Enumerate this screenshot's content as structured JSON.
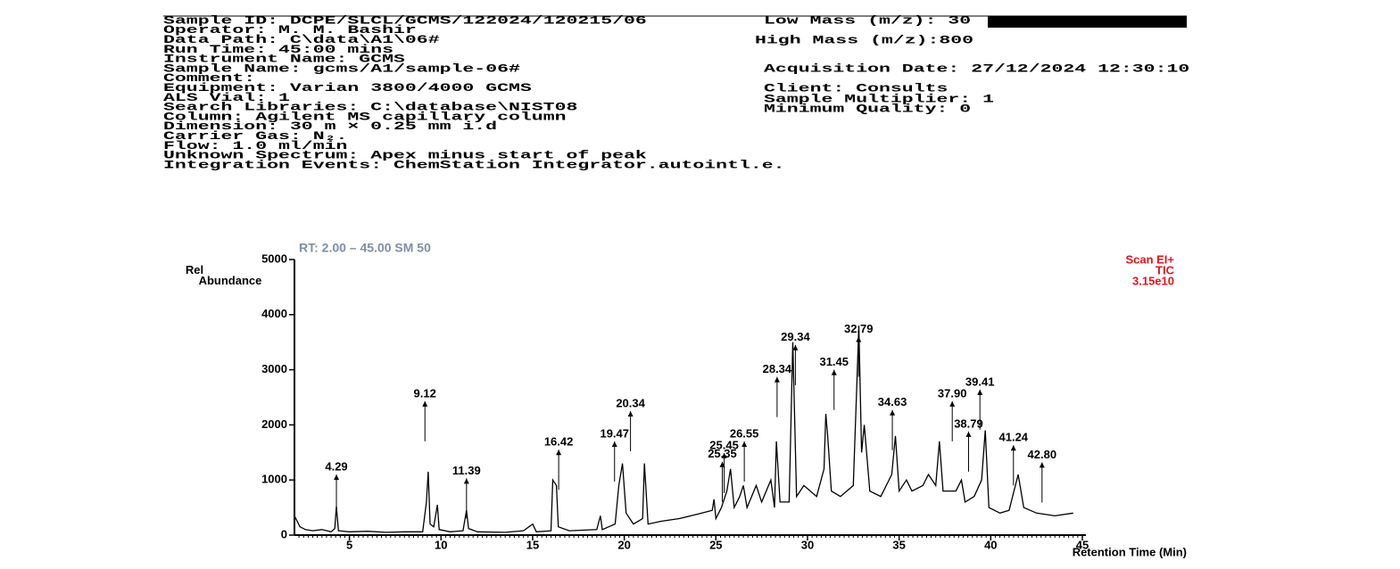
{
  "header": {
    "left": [
      "Sample ID: DCPE/SLCL/GCMS/122024/120215/06",
      "Operator: M. M. Bashir",
      "Data Path: C\\data\\A1\\06#",
      "Run Time: 45:00 mins",
      "Instrument Name: GCMS",
      "Sample Name: gcms/A1/sample-06#",
      "Comment:",
      "Equipment: Varian 3800/4000 GCMS",
      "ALS Vial: 1",
      "Search Libraries: C:\\database\\NIST08",
      "Column: Agilent MS capillary column",
      "Dimension: 30 m × 0.25 mm i.d",
      "Carrier Gas: N₂.",
      "Flow: 1.0 ml/min",
      "Unknown Spectrum: Apex minus start of peak",
      "Integration Events: ChemStation Integrator.autointl.e."
    ],
    "right": [
      "Low Mass (m/z): 30",
      "High Mass (m/z):800",
      "Acquisition Date: 27/12/2024 12:30:10",
      "Client: Consults",
      "Sample Multiplier: 1",
      "Minimum Quality: 0"
    ]
  },
  "chart_data": {
    "type": "line",
    "title": "RT: 2.00 – 45.00 SM 50",
    "y_label": "Rel Abundance",
    "x_label": "Retention Time (Min)",
    "annotation": [
      "Scan EI+",
      "TIC",
      "3.15e10"
    ],
    "xlim": [
      2,
      45
    ],
    "xticks": [
      5,
      10,
      15,
      20,
      25,
      30,
      35,
      40,
      45
    ],
    "ylim": [
      0,
      5000
    ],
    "yticks": [
      0,
      1000,
      2000,
      3000,
      4000,
      5000
    ],
    "color": "#000000",
    "x": [
      2.0,
      2.3,
      2.6,
      3.0,
      3.5,
      4.0,
      4.2,
      4.29,
      4.4,
      5,
      6,
      7,
      8,
      9.0,
      9.2,
      9.3,
      9.4,
      9.6,
      9.8,
      9.9,
      10.5,
      11.2,
      11.39,
      11.5,
      12,
      13.5,
      14.5,
      15,
      15.2,
      16,
      16.1,
      16.3,
      16.4,
      17,
      18.5,
      18.7,
      18.8,
      19.5,
      19.7,
      19.9,
      20.1,
      20.5,
      21.0,
      21.1,
      21.3,
      22,
      23,
      24,
      24.8,
      24.9,
      25,
      25.3,
      25.6,
      25.8,
      26,
      26.3,
      26.5,
      26.7,
      27.2,
      27.5,
      28.0,
      28.2,
      28.3,
      28.5,
      29,
      29.2,
      29.4,
      29.8,
      30.5,
      30.9,
      31.0,
      31.1,
      31.3,
      31.8,
      32.5,
      32.7,
      32.8,
      32.95,
      33.1,
      33.4,
      34,
      34.6,
      34.8,
      35,
      35.4,
      35.7,
      36.3,
      36.6,
      37,
      37.2,
      37.4,
      38.1,
      38.4,
      38.6,
      39.1,
      39.5,
      39.7,
      39.9,
      40.5,
      41,
      41.5,
      41.8,
      42.5,
      43.5,
      44.5
    ],
    "values": [
      350,
      150,
      100,
      80,
      100,
      60,
      120,
      520,
      80,
      60,
      70,
      50,
      60,
      60,
      600,
      1150,
      200,
      150,
      550,
      100,
      60,
      80,
      450,
      120,
      60,
      50,
      80,
      200,
      60,
      80,
      1000,
      900,
      150,
      80,
      100,
      350,
      100,
      200,
      900,
      1300,
      400,
      200,
      300,
      1300,
      200,
      250,
      300,
      380,
      450,
      650,
      300,
      500,
      800,
      1200,
      500,
      700,
      900,
      500,
      900,
      600,
      1000,
      500,
      1700,
      600,
      600,
      3500,
      700,
      900,
      700,
      1200,
      2200,
      1800,
      800,
      700,
      900,
      2800,
      3800,
      1500,
      2000,
      800,
      700,
      1100,
      1800,
      800,
      1000,
      800,
      900,
      1100,
      900,
      1700,
      800,
      800,
      1000,
      600,
      700,
      1000,
      1900,
      500,
      400,
      450,
      1100,
      500,
      400,
      350,
      400
    ],
    "peaks": [
      {
        "x": 4.29,
        "label": "4.29",
        "y": 1100
      },
      {
        "x": 9.12,
        "label": "9.12",
        "y": 2430
      },
      {
        "x": 11.39,
        "label": "11.39",
        "y": 1030
      },
      {
        "x": 16.42,
        "label": "16.42",
        "y": 1550
      },
      {
        "x": 19.47,
        "label": "19.47",
        "y": 1700
      },
      {
        "x": 20.34,
        "label": "20.34",
        "y": 2250
      },
      {
        "x": 25.35,
        "label": "25.35",
        "y": 1330
      },
      {
        "x": 25.45,
        "label": "25.45",
        "y": 1490
      },
      {
        "x": 26.55,
        "label": "26.55",
        "y": 1700
      },
      {
        "x": 28.34,
        "label": "28.34",
        "y": 2870
      },
      {
        "x": 29.34,
        "label": "29.34",
        "y": 3450
      },
      {
        "x": 31.45,
        "label": "31.45",
        "y": 3000
      },
      {
        "x": 32.79,
        "label": "32.79",
        "y": 3600
      },
      {
        "x": 34.63,
        "label": "34.63",
        "y": 2270
      },
      {
        "x": 37.9,
        "label": "37.90",
        "y": 2430
      },
      {
        "x": 38.79,
        "label": "38.79",
        "y": 1880
      },
      {
        "x": 39.41,
        "label": "39.41",
        "y": 2640
      },
      {
        "x": 41.24,
        "label": "41.24",
        "y": 1630
      },
      {
        "x": 42.8,
        "label": "42.80",
        "y": 1320
      }
    ]
  }
}
